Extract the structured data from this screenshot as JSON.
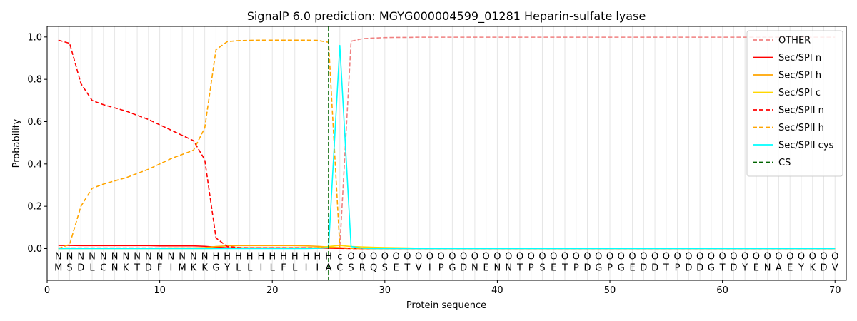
{
  "chart_data": {
    "type": "line",
    "title": "SignalP 6.0 prediction: MGYG000004599_01281 Heparin-sulfate lyase",
    "xlabel": "Protein sequence",
    "ylabel": "Probability",
    "xlim": [
      0,
      71
    ],
    "ylim": [
      -0.15,
      1.05
    ],
    "x_ticks": [
      0,
      10,
      20,
      30,
      40,
      50,
      60,
      70
    ],
    "y_ticks": [
      0.0,
      0.2,
      0.4,
      0.6,
      0.8,
      1.0
    ],
    "x_tick_labels": [
      "0",
      "10",
      "20",
      "30",
      "40",
      "50",
      "60",
      "70"
    ],
    "y_tick_labels": [
      "0.0",
      "0.2",
      "0.4",
      "0.6",
      "0.8",
      "1.0"
    ],
    "grid": "vertical lines at each residue",
    "legend_position": "top-right",
    "cleavage_site": 25,
    "residues": [
      "M",
      "S",
      "D",
      "L",
      "C",
      "N",
      "K",
      "T",
      "D",
      "F",
      "I",
      "M",
      "K",
      "K",
      "G",
      "Y",
      "L",
      "L",
      "I",
      "L",
      "F",
      "L",
      "I",
      "I",
      "A",
      "C",
      "S",
      "R",
      "Q",
      "S",
      "E",
      "T",
      "V",
      "I",
      "P",
      "G",
      "D",
      "N",
      "E",
      "N",
      "N",
      "T",
      "P",
      "S",
      "E",
      "T",
      "P",
      "D",
      "G",
      "P",
      "G",
      "E",
      "D",
      "D",
      "T",
      "P",
      "D",
      "D",
      "G",
      "T",
      "D",
      "Y",
      "E",
      "N",
      "A",
      "E",
      "Y",
      "K",
      "D",
      "V"
    ],
    "region_labels": [
      "N",
      "N",
      "N",
      "N",
      "N",
      "N",
      "N",
      "N",
      "N",
      "N",
      "N",
      "N",
      "N",
      "N",
      "H",
      "H",
      "H",
      "H",
      "H",
      "H",
      "H",
      "H",
      "H",
      "H",
      "H",
      "c",
      "O",
      "O",
      "O",
      "O",
      "O",
      "O",
      "O",
      "O",
      "O",
      "O",
      "O",
      "O",
      "O",
      "O",
      "O",
      "O",
      "O",
      "O",
      "O",
      "O",
      "O",
      "O",
      "O",
      "O",
      "O",
      "O",
      "O",
      "O",
      "O",
      "O",
      "O",
      "O",
      "O",
      "O",
      "O",
      "O",
      "O",
      "O",
      "O",
      "O",
      "O",
      "O",
      "O",
      "O"
    ],
    "region_colors": {
      "N": "#ff0000",
      "H": "#ffa500",
      "c": "#00d4d4",
      "O": "#808080"
    },
    "series": [
      {
        "name": "OTHER",
        "color": "#f08080",
        "dash": "dashed",
        "values": [
          0.003,
          0.003,
          0.003,
          0.003,
          0.003,
          0.003,
          0.003,
          0.003,
          0.003,
          0.003,
          0.003,
          0.003,
          0.003,
          0.003,
          0.003,
          0.003,
          0.003,
          0.003,
          0.003,
          0.003,
          0.003,
          0.003,
          0.003,
          0.003,
          0.003,
          0.005,
          0.98,
          0.992,
          0.995,
          0.997,
          0.998,
          0.998,
          0.999,
          0.999,
          0.999,
          0.999,
          0.999,
          0.999,
          0.999,
          0.999,
          0.999,
          0.999,
          0.999,
          0.999,
          0.999,
          0.999,
          0.999,
          0.999,
          0.999,
          0.999,
          0.999,
          0.999,
          0.999,
          0.999,
          0.999,
          0.999,
          0.999,
          0.999,
          0.999,
          0.999,
          0.999,
          0.999,
          0.999,
          0.999,
          0.999,
          0.999,
          0.999,
          0.999,
          0.999,
          0.999
        ]
      },
      {
        "name": "Sec/SPI n",
        "color": "#ff0000",
        "dash": "solid",
        "values": [
          0.015,
          0.015,
          0.014,
          0.014,
          0.014,
          0.014,
          0.014,
          0.014,
          0.014,
          0.013,
          0.013,
          0.013,
          0.013,
          0.011,
          0.007,
          0.004,
          0.003,
          0.003,
          0.003,
          0.003,
          0.003,
          0.003,
          0.003,
          0.002,
          0.002,
          0.001,
          0.001,
          0.0,
          0.0,
          0.0,
          0.0,
          0.0,
          0.0,
          0.0,
          0.0,
          0.0,
          0.0,
          0.0,
          0.0,
          0.0,
          0.0,
          0.0,
          0.0,
          0.0,
          0.0,
          0.0,
          0.0,
          0.0,
          0.0,
          0.0,
          0.0,
          0.0,
          0.0,
          0.0,
          0.0,
          0.0,
          0.0,
          0.0,
          0.0,
          0.0,
          0.0,
          0.0,
          0.0,
          0.0,
          0.0,
          0.0,
          0.0,
          0.0,
          0.0,
          0.0
        ]
      },
      {
        "name": "Sec/SPI h",
        "color": "#ffa500",
        "dash": "solid",
        "values": [
          0.0,
          0.001,
          0.002,
          0.002,
          0.002,
          0.002,
          0.002,
          0.002,
          0.002,
          0.002,
          0.003,
          0.003,
          0.003,
          0.005,
          0.01,
          0.013,
          0.014,
          0.014,
          0.014,
          0.014,
          0.014,
          0.014,
          0.013,
          0.011,
          0.008,
          0.004,
          0.002,
          0.001,
          0.0,
          0.0,
          0.0,
          0.0,
          0.0,
          0.0,
          0.0,
          0.0,
          0.0,
          0.0,
          0.0,
          0.0,
          0.0,
          0.0,
          0.0,
          0.0,
          0.0,
          0.0,
          0.0,
          0.0,
          0.0,
          0.0,
          0.0,
          0.0,
          0.0,
          0.0,
          0.0,
          0.0,
          0.0,
          0.0,
          0.0,
          0.0,
          0.0,
          0.0,
          0.0,
          0.0,
          0.0,
          0.0,
          0.0,
          0.0,
          0.0,
          0.0
        ]
      },
      {
        "name": "Sec/SPI c",
        "color": "#ffd700",
        "dash": "solid",
        "values": [
          0.0,
          0.0,
          0.0,
          0.0,
          0.0,
          0.0,
          0.0,
          0.0,
          0.0,
          0.0,
          0.0,
          0.0,
          0.0,
          0.0,
          0.001,
          0.002,
          0.003,
          0.003,
          0.003,
          0.003,
          0.003,
          0.004,
          0.004,
          0.005,
          0.01,
          0.015,
          0.01,
          0.008,
          0.006,
          0.005,
          0.004,
          0.003,
          0.002,
          0.001,
          0.0,
          0.0,
          0.0,
          0.0,
          0.0,
          0.0,
          0.0,
          0.0,
          0.0,
          0.0,
          0.0,
          0.0,
          0.0,
          0.0,
          0.0,
          0.0,
          0.0,
          0.0,
          0.0,
          0.0,
          0.0,
          0.0,
          0.0,
          0.0,
          0.0,
          0.0,
          0.0,
          0.0,
          0.0,
          0.0,
          0.0,
          0.0,
          0.0,
          0.0,
          0.0,
          0.0
        ]
      },
      {
        "name": "Sec/SPII n",
        "color": "#ff0000",
        "dash": "dashed",
        "values": [
          0.985,
          0.97,
          0.78,
          0.7,
          0.68,
          0.665,
          0.65,
          0.63,
          0.61,
          0.585,
          0.56,
          0.535,
          0.51,
          0.42,
          0.05,
          0.01,
          0.005,
          0.004,
          0.004,
          0.004,
          0.004,
          0.004,
          0.004,
          0.003,
          0.003,
          0.001,
          0.0,
          0.0,
          0.0,
          0.0,
          0.0,
          0.0,
          0.0,
          0.0,
          0.0,
          0.0,
          0.0,
          0.0,
          0.0,
          0.0,
          0.0,
          0.0,
          0.0,
          0.0,
          0.0,
          0.0,
          0.0,
          0.0,
          0.0,
          0.0,
          0.0,
          0.0,
          0.0,
          0.0,
          0.0,
          0.0,
          0.0,
          0.0,
          0.0,
          0.0,
          0.0,
          0.0,
          0.0,
          0.0,
          0.0,
          0.0,
          0.0,
          0.0,
          0.0,
          0.0
        ]
      },
      {
        "name": "Sec/SPII h",
        "color": "#ffa500",
        "dash": "dashed",
        "values": [
          0.0,
          0.02,
          0.2,
          0.285,
          0.305,
          0.32,
          0.335,
          0.355,
          0.375,
          0.4,
          0.425,
          0.445,
          0.465,
          0.57,
          0.94,
          0.978,
          0.983,
          0.984,
          0.985,
          0.985,
          0.985,
          0.985,
          0.985,
          0.984,
          0.975,
          0.005,
          0.001,
          0.0,
          0.0,
          0.0,
          0.0,
          0.0,
          0.0,
          0.0,
          0.0,
          0.0,
          0.0,
          0.0,
          0.0,
          0.0,
          0.0,
          0.0,
          0.0,
          0.0,
          0.0,
          0.0,
          0.0,
          0.0,
          0.0,
          0.0,
          0.0,
          0.0,
          0.0,
          0.0,
          0.0,
          0.0,
          0.0,
          0.0,
          0.0,
          0.0,
          0.0,
          0.0,
          0.0,
          0.0,
          0.0,
          0.0,
          0.0,
          0.0,
          0.0,
          0.0
        ]
      },
      {
        "name": "Sec/SPII cys",
        "color": "#00ffff",
        "dash": "solid",
        "values": [
          0.0,
          0.0,
          0.0,
          0.0,
          0.0,
          0.0,
          0.0,
          0.0,
          0.0,
          0.0,
          0.0,
          0.0,
          0.0,
          0.0,
          0.0,
          0.0,
          0.0,
          0.0,
          0.0,
          0.0,
          0.0,
          0.0,
          0.0,
          0.001,
          0.005,
          0.96,
          0.01,
          0.002,
          0.0,
          0.0,
          0.0,
          0.0,
          0.0,
          0.0,
          0.0,
          0.0,
          0.0,
          0.0,
          0.0,
          0.0,
          0.0,
          0.0,
          0.0,
          0.0,
          0.0,
          0.0,
          0.0,
          0.0,
          0.0,
          0.0,
          0.0,
          0.0,
          0.0,
          0.0,
          0.0,
          0.0,
          0.0,
          0.0,
          0.0,
          0.0,
          0.0,
          0.0,
          0.0,
          0.0,
          0.0,
          0.0,
          0.0,
          0.0,
          0.0,
          0.0
        ]
      }
    ],
    "cs_legend": {
      "name": "CS",
      "color": "#006400",
      "dash": "dashed"
    }
  }
}
